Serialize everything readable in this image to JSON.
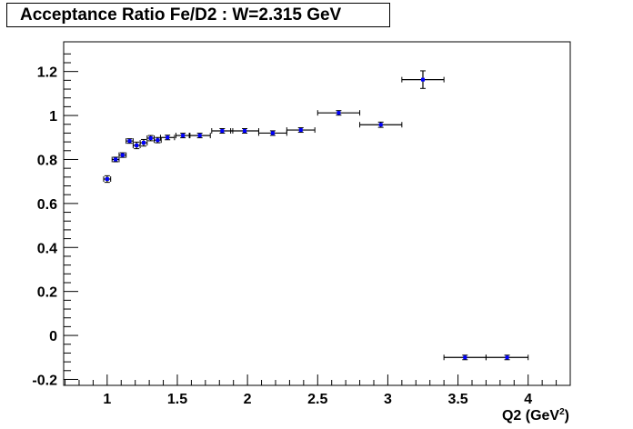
{
  "chart_data": {
    "type": "scatter",
    "title": "Acceptance Ratio Fe/D2 : W=2.315 GeV",
    "xlabel": "Q2 (GeV",
    "xlabel_sup": "2",
    "xlabel_end": ")",
    "ylabel": "",
    "xlim": [
      0.69,
      4.3
    ],
    "ylim": [
      -0.227,
      1.335
    ],
    "x_ticks": [
      "1",
      "1.5",
      "2",
      "2.5",
      "3",
      "3.5",
      "4"
    ],
    "x_tick_values": [
      1,
      1.5,
      2,
      2.5,
      3,
      3.5,
      4
    ],
    "y_ticks": [
      "-0.2",
      "0",
      "0.2",
      "0.4",
      "0.6",
      "0.8",
      "1",
      "1.2"
    ],
    "y_tick_values": [
      -0.2,
      0,
      0.2,
      0.4,
      0.6,
      0.8,
      1,
      1.2
    ],
    "marker_color": "#0000ff",
    "points": [
      {
        "x": 1.0,
        "y": 0.711,
        "xerr": 0.025,
        "yerr": 0.015
      },
      {
        "x": 1.06,
        "y": 0.8,
        "xerr": 0.025,
        "yerr": 0.01
      },
      {
        "x": 1.11,
        "y": 0.82,
        "xerr": 0.025,
        "yerr": 0.01
      },
      {
        "x": 1.16,
        "y": 0.884,
        "xerr": 0.025,
        "yerr": 0.01
      },
      {
        "x": 1.21,
        "y": 0.864,
        "xerr": 0.025,
        "yerr": 0.015
      },
      {
        "x": 1.26,
        "y": 0.876,
        "xerr": 0.025,
        "yerr": 0.015
      },
      {
        "x": 1.31,
        "y": 0.897,
        "xerr": 0.025,
        "yerr": 0.012
      },
      {
        "x": 1.36,
        "y": 0.888,
        "xerr": 0.025,
        "yerr": 0.012
      },
      {
        "x": 1.43,
        "y": 0.9,
        "xerr": 0.05,
        "yerr": 0.008
      },
      {
        "x": 1.54,
        "y": 0.909,
        "xerr": 0.05,
        "yerr": 0.008
      },
      {
        "x": 1.66,
        "y": 0.909,
        "xerr": 0.075,
        "yerr": 0.006
      },
      {
        "x": 1.82,
        "y": 0.93,
        "xerr": 0.075,
        "yerr": 0.008
      },
      {
        "x": 1.98,
        "y": 0.93,
        "xerr": 0.1,
        "yerr": 0.006
      },
      {
        "x": 2.18,
        "y": 0.92,
        "xerr": 0.1,
        "yerr": 0.008
      },
      {
        "x": 2.38,
        "y": 0.934,
        "xerr": 0.1,
        "yerr": 0.01
      },
      {
        "x": 2.65,
        "y": 1.012,
        "xerr": 0.15,
        "yerr": 0.01
      },
      {
        "x": 2.95,
        "y": 0.958,
        "xerr": 0.15,
        "yerr": 0.012
      },
      {
        "x": 3.25,
        "y": 1.163,
        "xerr": 0.15,
        "yerr": 0.04
      },
      {
        "x": 3.55,
        "y": -0.1,
        "xerr": 0.15,
        "yerr": 0
      },
      {
        "x": 3.85,
        "y": -0.1,
        "xerr": 0.15,
        "yerr": 0
      }
    ]
  }
}
